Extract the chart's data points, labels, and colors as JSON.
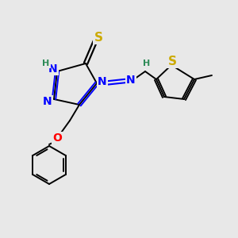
{
  "bg_color": "#e8e8e8",
  "atom_colors": {
    "N": "#0000ff",
    "S": "#ccaa00",
    "O": "#ff0000",
    "C": "#000000",
    "H_label": "#2e8b57"
  },
  "bond_color": "#000000",
  "font_size_atom": 10,
  "font_size_small": 8,
  "font_size_S": 11
}
